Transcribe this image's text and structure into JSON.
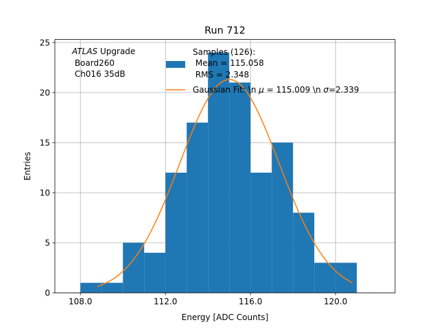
{
  "chart_data": {
    "type": "bar",
    "title": "Run 712",
    "xlabel": "Energy [ADC Counts]",
    "ylabel": "Entries",
    "xlim": [
      106.8,
      122.8
    ],
    "ylim": [
      0,
      25.3
    ],
    "x_ticks": [
      108,
      112,
      116,
      120
    ],
    "x_tick_labels": [
      "108.0",
      "112.0",
      "116.0",
      "120.0"
    ],
    "y_ticks": [
      0,
      5,
      10,
      15,
      20,
      25
    ],
    "y_tick_labels": [
      "0",
      "5",
      "10",
      "15",
      "20",
      "25"
    ],
    "grid": true,
    "annotation": {
      "italic": "ATLAS",
      "line1_rest": " Upgrade",
      "line2": " Board260",
      "line3": " Ch016 35dB"
    },
    "legend": {
      "placement": "top-right",
      "hist_label_lines": [
        "Samples (126):",
        " Mean = 115.058",
        " RMS = 2.348"
      ],
      "fit_label_pre": "Gaussian Fit: \\n ",
      "fit_label_mu": "μ",
      "fit_label_mid": " = 115.009 \\n ",
      "fit_label_sigma": "σ",
      "fit_label_post": "=2.339"
    },
    "histogram": {
      "color": "#1f77b4",
      "bin_edges": [
        108,
        109,
        110,
        111,
        112,
        113,
        114,
        115,
        116,
        117,
        118,
        119,
        120,
        121
      ],
      "counts": [
        1,
        1,
        5,
        4,
        12,
        17,
        24,
        21,
        12,
        15,
        8,
        3,
        3
      ]
    },
    "fit": {
      "color": "#ff7f0e",
      "amplitude": 21.3,
      "mu": 115.009,
      "sigma": 2.339,
      "x_range": [
        108.8,
        120.8
      ]
    }
  }
}
